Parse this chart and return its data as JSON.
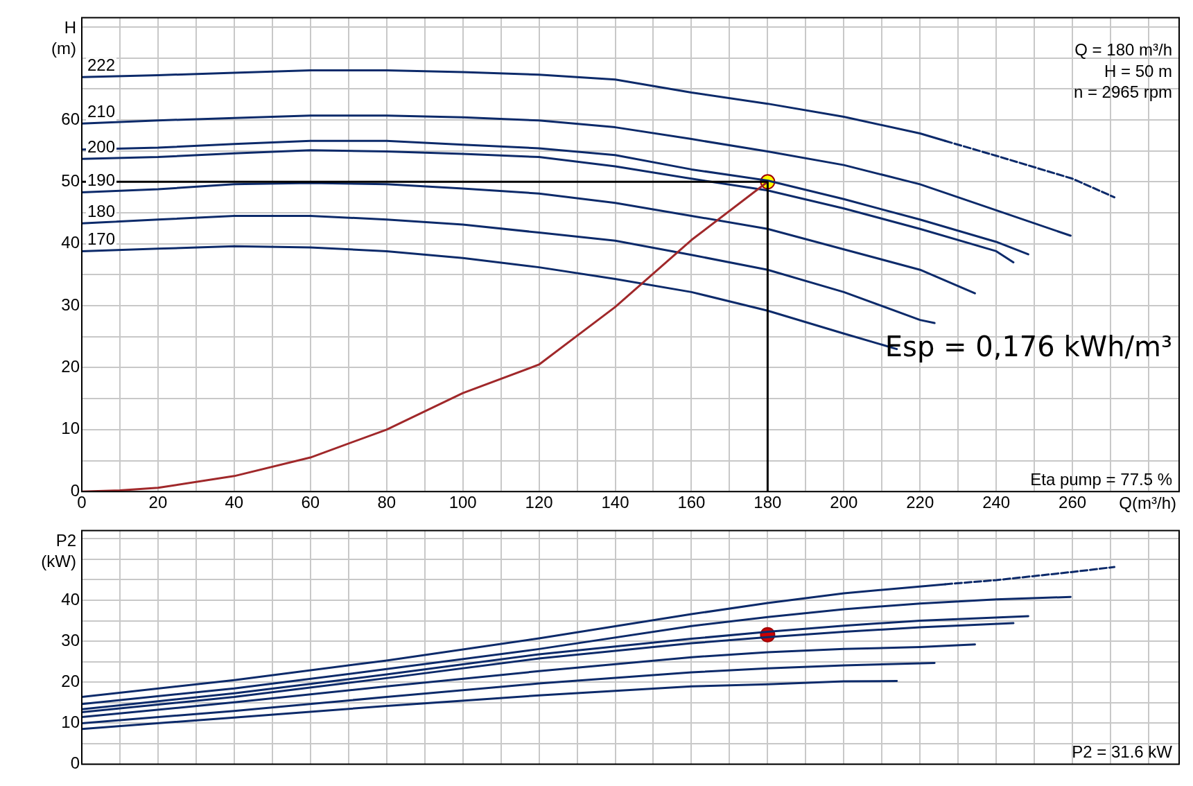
{
  "chart_data": [
    {
      "type": "line",
      "xlabel": "Q(m³/h)",
      "ylabel": "H (m)",
      "xlim": [
        0,
        288
      ],
      "ylim": [
        0,
        76.5
      ],
      "xticks": [
        0,
        {
          "value": 10,
          "label": null
        },
        20,
        {
          "value": 30,
          "label": null
        },
        40,
        {
          "value": 50,
          "label": null
        },
        60,
        {
          "value": 70,
          "label": null
        },
        80,
        {
          "value": 90,
          "label": null
        },
        100,
        {
          "value": 110,
          "label": null
        },
        120,
        {
          "value": 130,
          "label": null
        },
        140,
        {
          "value": 150,
          "label": null
        },
        160,
        {
          "value": 170,
          "label": null
        },
        180,
        {
          "value": 190,
          "label": null
        },
        200,
        {
          "value": 210,
          "label": null
        },
        220,
        {
          "value": 230,
          "label": null
        },
        240,
        {
          "value": 250,
          "label": null
        },
        260,
        {
          "value": 270,
          "label": null
        },
        {
          "value": 280,
          "label": null
        }
      ],
      "yticks": [
        0,
        {
          "value": 5,
          "label": null
        },
        10,
        {
          "value": 15,
          "label": null
        },
        20,
        {
          "value": 25,
          "label": null
        },
        30,
        {
          "value": 35,
          "label": null
        },
        40,
        {
          "value": 45,
          "label": null
        },
        50,
        {
          "value": 55,
          "label": null
        },
        60,
        {
          "value": 65,
          "label": null
        },
        {
          "value": 70,
          "label": null
        },
        {
          "value": 75,
          "label": null
        }
      ],
      "grid": true,
      "legend": false,
      "marker": "none",
      "line_style": "solid",
      "annotations": [
        "Q = 180 m³/h",
        "H = 50 m",
        "n = 2965 rpm",
        "Esp = 0,176 kWh/m³",
        "Eta pump = 77.5 %"
      ],
      "series": [
        {
          "name": "222",
          "color": "#0c2a6a",
          "x": [
            0,
            20,
            40,
            60,
            80,
            100,
            120,
            140,
            160,
            180,
            200,
            220,
            226.6
          ],
          "values": [
            66.9,
            67.2,
            67.6,
            68,
            68,
            67.7,
            67.3,
            66.5,
            64.4,
            62.6,
            60.5,
            57.8,
            56.6
          ]
        },
        {
          "color": "#0c2a6a",
          "line_style": "dashed",
          "x": [
            226.6,
            240,
            260,
            271
          ],
          "values": [
            56.6,
            54.2,
            50.5,
            47.5
          ]
        },
        {
          "name": "210",
          "color": "#0c2a6a",
          "x": [
            0,
            20,
            40,
            60,
            80,
            100,
            120,
            140,
            160,
            180,
            200,
            220,
            240,
            259.5
          ],
          "values": [
            59.4,
            59.9,
            60.3,
            60.7,
            60.7,
            60.4,
            59.9,
            58.8,
            56.9,
            54.9,
            52.7,
            49.6,
            45.4,
            41.3
          ]
        },
        {
          "color": "#0c2a6a",
          "x": [
            0,
            20,
            40,
            60,
            80,
            100,
            120,
            140,
            160,
            180,
            200,
            220,
            240,
            248.4
          ],
          "values": [
            55.2,
            55.5,
            56.1,
            56.6,
            56.6,
            56,
            55.4,
            54.3,
            52,
            50.2,
            47.2,
            43.9,
            40.3,
            38.3
          ]
        },
        {
          "name": "200",
          "color": "#0c2a6a",
          "x": [
            0,
            20,
            40,
            60,
            80,
            100,
            120,
            140,
            160,
            180,
            200,
            220,
            240,
            244.5
          ],
          "values": [
            53.7,
            54,
            54.6,
            55.1,
            54.9,
            54.5,
            54,
            52.5,
            50.5,
            48.6,
            45.7,
            42.4,
            38.8,
            37
          ]
        },
        {
          "name": "190",
          "color": "#0c2a6a",
          "x": [
            0,
            20,
            40,
            60,
            80,
            100,
            120,
            140,
            160,
            180,
            200,
            220,
            234.4
          ],
          "values": [
            48.3,
            48.8,
            49.6,
            49.8,
            49.6,
            48.9,
            48.1,
            46.6,
            44.5,
            42.4,
            39.1,
            35.8,
            32
          ]
        },
        {
          "name": "180",
          "color": "#0c2a6a",
          "x": [
            0,
            20,
            40,
            60,
            80,
            100,
            120,
            140,
            160,
            180,
            200,
            220,
            223.8
          ],
          "values": [
            43.3,
            43.9,
            44.5,
            44.5,
            43.9,
            43.1,
            41.8,
            40.5,
            38.2,
            35.8,
            32.2,
            27.7,
            27.2
          ]
        },
        {
          "name": "170",
          "color": "#0c2a6a",
          "x": [
            0,
            20,
            40,
            60,
            80,
            100,
            120,
            140,
            160,
            180,
            200,
            213.9
          ],
          "values": [
            38.8,
            39.2,
            39.6,
            39.4,
            38.8,
            37.7,
            36.2,
            34.3,
            32.2,
            29.2,
            25.5,
            23
          ]
        },
        {
          "color": "#a0282a",
          "x": [
            0,
            10,
            20,
            40,
            60,
            80,
            100,
            120,
            140,
            160,
            180
          ],
          "values": [
            0,
            0.2,
            0.6,
            2.5,
            5.5,
            10,
            15.9,
            20.5,
            29.8,
            40.6,
            50
          ]
        },
        {
          "color": "#000000",
          "x": [
            0,
            180,
            180
          ],
          "values": [
            50,
            50,
            0
          ]
        },
        {
          "type": "scatter",
          "marker": "circle",
          "color": "#ffff00",
          "x": [
            180
          ],
          "values": [
            50
          ]
        }
      ]
    },
    {
      "type": "line",
      "ylabel": "P2 (kW)",
      "xlim": [
        0,
        288
      ],
      "ylim": [
        0,
        57
      ],
      "tick_labels": "y",
      "xticks": [
        0,
        10,
        20,
        30,
        40,
        50,
        60,
        70,
        80,
        90,
        100,
        110,
        120,
        130,
        140,
        150,
        160,
        170,
        180,
        190,
        200,
        210,
        220,
        230,
        240,
        250,
        260,
        270,
        280
      ],
      "yticks": [
        0,
        {
          "value": 5,
          "label": null
        },
        10,
        {
          "value": 15,
          "label": null
        },
        20,
        {
          "value": 25,
          "label": null
        },
        30,
        {
          "value": 35,
          "label": null
        },
        40,
        {
          "value": 45,
          "label": null
        },
        {
          "value": 50,
          "label": null
        },
        {
          "value": 55,
          "label": null
        }
      ],
      "grid": true,
      "legend": false,
      "marker": "none",
      "line_style": "solid",
      "annotations": [
        "P2 = 31.6 kW"
      ],
      "series": [
        {
          "color": "#0c2a6a",
          "x": [
            0,
            40,
            80,
            120,
            160,
            180,
            200,
            226.6
          ],
          "values": [
            16.4,
            20.5,
            25.3,
            30.7,
            36.6,
            39.3,
            41.7,
            43.9
          ]
        },
        {
          "color": "#0c2a6a",
          "line_style": "dashed",
          "x": [
            226.6,
            240,
            260,
            271
          ],
          "values": [
            43.9,
            44.9,
            46.9,
            48.1
          ]
        },
        {
          "color": "#0c2a6a",
          "x": [
            0,
            40,
            80,
            120,
            160,
            180,
            200,
            220,
            240,
            259.5
          ],
          "values": [
            14.7,
            18.5,
            23.2,
            28.1,
            33.7,
            35.9,
            37.8,
            39.2,
            40.2,
            40.8
          ]
        },
        {
          "color": "#0c2a6a",
          "x": [
            0,
            40,
            80,
            120,
            160,
            180,
            200,
            220,
            248.4
          ],
          "values": [
            13.4,
            17.3,
            21.9,
            26.8,
            30.6,
            32.3,
            33.8,
            35,
            36.1
          ]
        },
        {
          "color": "#0c2a6a",
          "x": [
            0,
            40,
            80,
            120,
            160,
            180,
            200,
            220,
            244.5
          ],
          "values": [
            12.7,
            16.4,
            21,
            25.8,
            29.5,
            31,
            32.3,
            33.4,
            34.4
          ]
        },
        {
          "color": "#0c2a6a",
          "x": [
            0,
            40,
            80,
            120,
            160,
            180,
            200,
            220,
            234.4
          ],
          "values": [
            11.5,
            15.1,
            19,
            22.7,
            26.1,
            27.3,
            28.1,
            28.6,
            29.2
          ]
        },
        {
          "color": "#0c2a6a",
          "x": [
            0,
            40,
            80,
            120,
            160,
            180,
            200,
            223.8
          ],
          "values": [
            10,
            13,
            16.4,
            19.7,
            22.4,
            23.4,
            24.1,
            24.7
          ]
        },
        {
          "color": "#0c2a6a",
          "x": [
            0,
            40,
            80,
            120,
            160,
            180,
            200,
            213.9
          ],
          "values": [
            8.6,
            11.4,
            14.2,
            16.8,
            19,
            19.5,
            20.2,
            20.3
          ]
        },
        {
          "type": "scatter",
          "marker": "circle",
          "color": "#cc0000",
          "x": [
            180
          ],
          "values": [
            31.6
          ]
        }
      ]
    }
  ]
}
